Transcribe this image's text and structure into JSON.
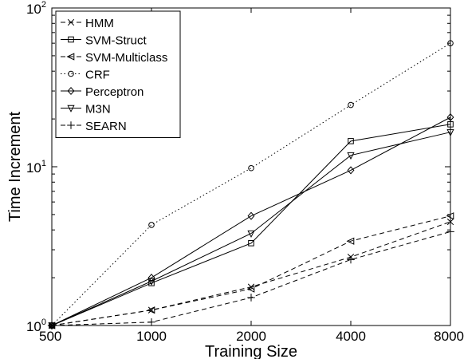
{
  "chart_data": {
    "type": "line",
    "xlabel": "Training Size",
    "ylabel": "Time Increment",
    "x_scale": "log2",
    "y_scale": "log10",
    "x": [
      500,
      1000,
      2000,
      4000,
      8000
    ],
    "x_tick_labels": [
      "500",
      "1000",
      "2000",
      "4000",
      "8000"
    ],
    "xlim": [
      500,
      8000
    ],
    "ylim": [
      1,
      100
    ],
    "y_ticks": [
      {
        "base": "10",
        "exp": "0",
        "value": 1
      },
      {
        "base": "10",
        "exp": "1",
        "value": 10
      },
      {
        "base": "10",
        "exp": "2",
        "value": 100
      }
    ],
    "grid": false,
    "legend_position": "top-left",
    "series": [
      {
        "name": "HMM",
        "marker": "x",
        "line": "dashed",
        "values": [
          1,
          1.25,
          1.75,
          2.7,
          4.5
        ]
      },
      {
        "name": "SVM-Struct",
        "marker": "square",
        "line": "solid",
        "values": [
          1,
          1.85,
          3.3,
          14.5,
          18.5
        ]
      },
      {
        "name": "SVM-Multiclass",
        "marker": "triangle-left",
        "line": "dashed",
        "values": [
          1,
          1.25,
          1.7,
          3.4,
          4.9
        ]
      },
      {
        "name": "CRF",
        "marker": "circle",
        "line": "dotted",
        "values": [
          1,
          4.3,
          9.8,
          24.5,
          60
        ]
      },
      {
        "name": "Perceptron",
        "marker": "diamond",
        "line": "solid",
        "values": [
          1,
          2.0,
          4.9,
          9.5,
          20.5
        ]
      },
      {
        "name": "M3N",
        "marker": "triangle-down",
        "line": "solid",
        "values": [
          1,
          1.9,
          3.8,
          11.8,
          16.5
        ]
      },
      {
        "name": "SEARN",
        "marker": "plus",
        "line": "dashed",
        "values": [
          1,
          1.05,
          1.5,
          2.6,
          3.9
        ]
      }
    ]
  }
}
